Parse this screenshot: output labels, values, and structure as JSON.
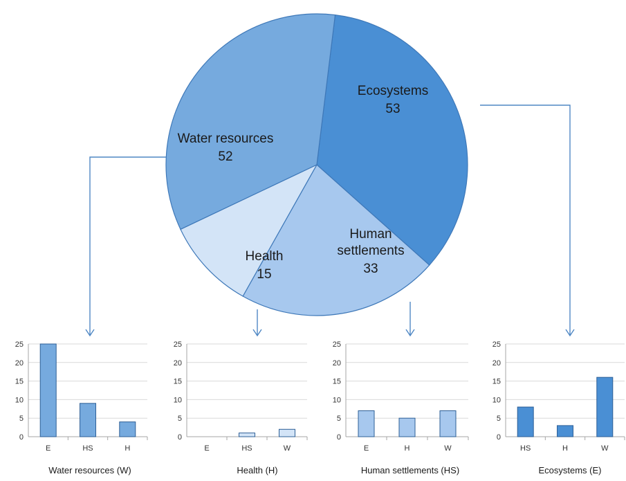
{
  "chart_data": [
    {
      "type": "pie",
      "title": "",
      "slices": [
        {
          "label": "Ecosystems",
          "value": 53,
          "color": "#4a8fd4"
        },
        {
          "label": "Human settlements",
          "label_lines": [
            "Human",
            "settlements"
          ],
          "value": 33,
          "color": "#a7c8ee"
        },
        {
          "label": "Health",
          "value": 15,
          "color": "#d3e4f7"
        },
        {
          "label": "Water resources",
          "value": 52,
          "color": "#76aade"
        }
      ]
    },
    {
      "type": "bar",
      "title": "Water resources (W)",
      "categories": [
        "E",
        "HS",
        "H"
      ],
      "values": [
        25,
        9,
        4
      ],
      "ylim": [
        0,
        25
      ],
      "yticks": [
        0,
        5,
        10,
        15,
        20,
        25
      ],
      "bar_color": "#76aade",
      "grid": true
    },
    {
      "type": "bar",
      "title": "Health (H)",
      "categories": [
        "E",
        "HS",
        "W"
      ],
      "values": [
        0,
        1,
        2
      ],
      "ylim": [
        0,
        25
      ],
      "yticks": [
        0,
        5,
        10,
        15,
        20,
        25
      ],
      "bar_color": "#d3e4f7",
      "grid": true
    },
    {
      "type": "bar",
      "title": "Human settlements (HS)",
      "categories": [
        "E",
        "H",
        "W"
      ],
      "values": [
        7,
        5,
        7
      ],
      "ylim": [
        0,
        25
      ],
      "yticks": [
        0,
        5,
        10,
        15,
        20,
        25
      ],
      "bar_color": "#a7c8ee",
      "grid": true
    },
    {
      "type": "bar",
      "title": "Ecosystems (E)",
      "categories": [
        "HS",
        "H",
        "W"
      ],
      "values": [
        8,
        3,
        16
      ],
      "ylim": [
        0,
        25
      ],
      "yticks": [
        0,
        5,
        10,
        15,
        20,
        25
      ],
      "bar_color": "#4a8fd4",
      "grid": true
    }
  ],
  "colors": {
    "connector": "#4f87c4",
    "bar_outline": "#2e5f96",
    "grid": "#d9d9d9",
    "axis": "#a6a6a6"
  }
}
